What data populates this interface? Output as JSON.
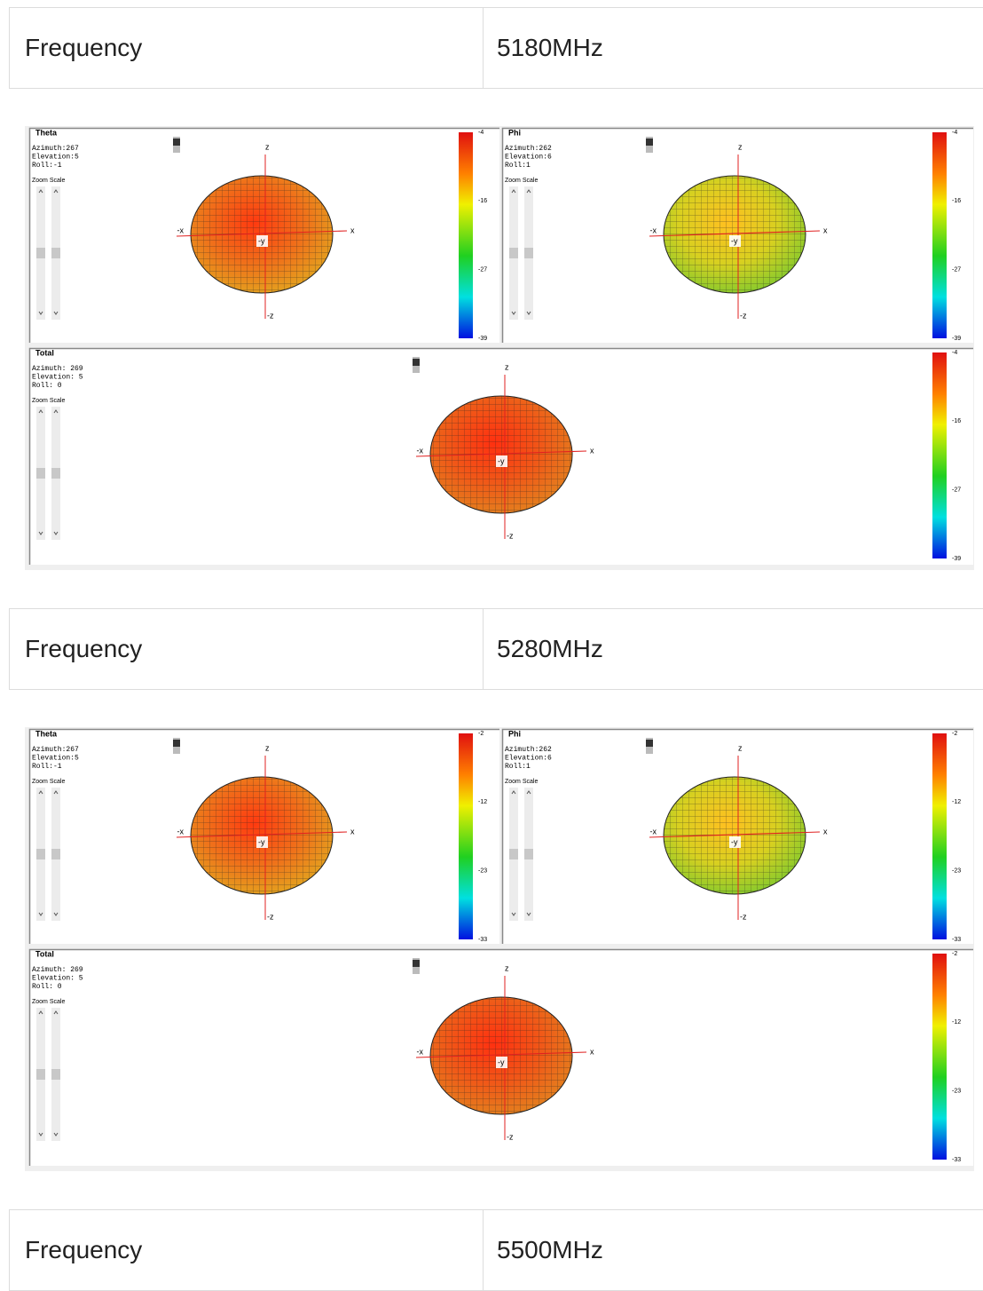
{
  "sections": [
    {
      "label": "Frequency",
      "frequency": "5180MHz",
      "panels": [
        {
          "title": "Theta",
          "azimuth": "Azimuth:267",
          "elevation": "Elevation:5",
          "roll": "Roll:-1",
          "zoom_scale": "Zoom Scale",
          "axes": {
            "z": "z",
            "x": "x",
            "neg_x": "-x",
            "neg_y": "-y",
            "neg_z": "-z"
          },
          "colorbar": [
            -4,
            -16,
            -27,
            -39
          ]
        },
        {
          "title": "Phi",
          "azimuth": "Azimuth:262",
          "elevation": "Elevation:6",
          "roll": "Roll:1",
          "zoom_scale": "Zoom Scale",
          "axes": {
            "z": "z",
            "x": "x",
            "neg_x": "-x",
            "neg_y": "-y",
            "neg_z": "-z"
          },
          "colorbar": [
            -4,
            -16,
            -27,
            -39
          ]
        },
        {
          "title": "Total",
          "azimuth": "Azimuth: 269",
          "elevation": "Elevation: 5",
          "roll": "Roll: 0",
          "zoom_scale": "Zoom Scale",
          "axes": {
            "z": "z",
            "x": "x",
            "neg_x": "-x",
            "neg_y": "-y",
            "neg_z": "-z"
          },
          "colorbar": [
            -4,
            -16,
            -27,
            -39
          ]
        }
      ]
    },
    {
      "label": "Frequency",
      "frequency": "5280MHz",
      "panels": [
        {
          "title": "Theta",
          "azimuth": "Azimuth:267",
          "elevation": "Elevation:5",
          "roll": "Roll:-1",
          "zoom_scale": "Zoom Scale",
          "axes": {
            "z": "z",
            "x": "x",
            "neg_x": "-x",
            "neg_y": "-y",
            "neg_z": "-z"
          },
          "colorbar": [
            -2,
            -12,
            -23,
            -33
          ]
        },
        {
          "title": "Phi",
          "azimuth": "Azimuth:262",
          "elevation": "Elevation:6",
          "roll": "Roll:1",
          "zoom_scale": "Zoom Scale",
          "axes": {
            "z": "z",
            "x": "x",
            "neg_x": "-x",
            "neg_y": "-y",
            "neg_z": "-z"
          },
          "colorbar": [
            -2,
            -12,
            -23,
            -33
          ]
        },
        {
          "title": "Total",
          "azimuth": "Azimuth: 269",
          "elevation": "Elevation: 5",
          "roll": "Roll: 0",
          "zoom_scale": "Zoom Scale",
          "axes": {
            "z": "z",
            "x": "x",
            "neg_x": "-x",
            "neg_y": "-y",
            "neg_z": "-z"
          },
          "colorbar": [
            -2,
            -12,
            -23,
            -33
          ]
        }
      ]
    },
    {
      "label": "Frequency",
      "frequency": "5500MHz"
    }
  ]
}
